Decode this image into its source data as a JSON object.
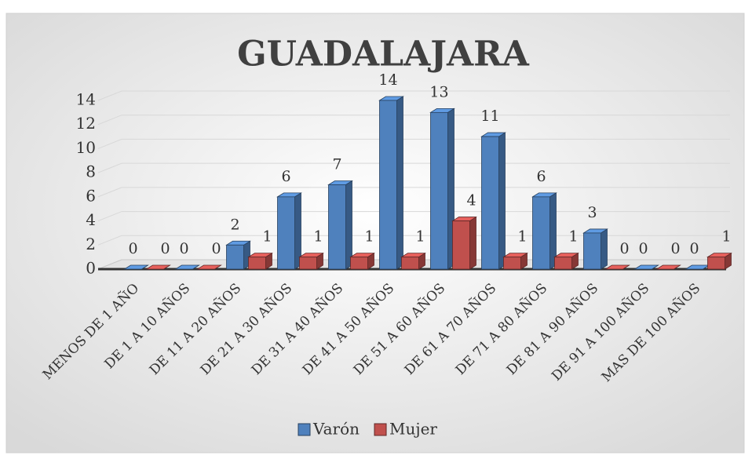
{
  "chart_data": {
    "type": "bar3d",
    "title": "GUADALAJARA",
    "categories": [
      "MENOS DE 1 AÑO",
      "DE 1 A 10 AÑOS",
      "DE 11 A 20 AÑOS",
      "DE 21 A 30 AÑOS",
      "DE 31 A 40 AÑOS",
      "DE 41 A 50 AÑOS",
      "DE 51 A 60 AÑOS",
      "DE 61 A 70 AÑOS",
      "DE 71 A 80 AÑOS",
      "DE 81 A 90 AÑOS",
      "DE 91 A 100 AÑOS",
      "MAS DE 100 AÑOS"
    ],
    "series": [
      {
        "name": "Varón",
        "color": "#4f81bd",
        "values": [
          0,
          0,
          2,
          6,
          7,
          14,
          13,
          11,
          6,
          3,
          0,
          0
        ]
      },
      {
        "name": "Mujer",
        "color": "#c0504d",
        "values": [
          0,
          0,
          1,
          1,
          1,
          1,
          4,
          1,
          1,
          0,
          0,
          1
        ]
      }
    ],
    "ylim": [
      0,
      14
    ],
    "yticks": [
      0,
      2,
      4,
      6,
      8,
      10,
      12,
      14
    ],
    "grid": true,
    "legend": "bottom"
  }
}
